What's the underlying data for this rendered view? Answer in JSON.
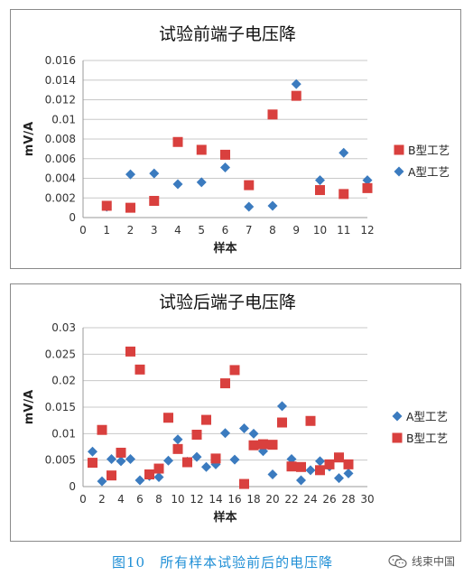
{
  "chart_data": [
    {
      "type": "scatter",
      "title": "试验前端子电压降",
      "xlabel": "样本",
      "ylabel": "mV/A",
      "xlim": [
        0,
        12
      ],
      "ylim": [
        0,
        0.016
      ],
      "xticks": [
        0,
        1,
        2,
        3,
        4,
        5,
        6,
        7,
        8,
        9,
        10,
        11,
        12
      ],
      "yticks": [
        "0",
        "0.002",
        "0.004",
        "0.006",
        "0.008",
        "0.01",
        "0.012",
        "0.014",
        "0.016"
      ],
      "grid": "horizontal",
      "legend_position": "right",
      "series": [
        {
          "name": "B型工艺",
          "marker": "square",
          "color": "#d9403e",
          "x": [
            1,
            2,
            3,
            4,
            5,
            6,
            7,
            8,
            9,
            10,
            11,
            12
          ],
          "y": [
            0.0012,
            0.001,
            0.0017,
            0.0077,
            0.0069,
            0.0064,
            0.0033,
            0.0105,
            0.0124,
            0.0028,
            0.0024,
            0.003
          ]
        },
        {
          "name": "A型工艺",
          "marker": "diamond",
          "color": "#3b7bbf",
          "x": [
            1,
            2,
            3,
            4,
            5,
            6,
            7,
            8,
            9,
            10,
            11,
            12
          ],
          "y": [
            0.0011,
            0.0044,
            0.0045,
            0.0034,
            0.0036,
            0.0051,
            0.0011,
            0.0012,
            0.0136,
            0.0038,
            0.0066,
            0.0038
          ]
        }
      ]
    },
    {
      "type": "scatter",
      "title": "试验后端子电压降",
      "xlabel": "样本",
      "ylabel": "mV/A",
      "xlim": [
        0,
        30
      ],
      "ylim": [
        0,
        0.03
      ],
      "xticks": [
        0,
        2,
        4,
        6,
        8,
        10,
        12,
        14,
        16,
        18,
        20,
        22,
        24,
        26,
        28,
        30
      ],
      "yticks": [
        "0",
        "0.005",
        "0.01",
        "0.015",
        "0.02",
        "0.025",
        "0.03"
      ],
      "grid": "horizontal",
      "legend_position": "right",
      "series": [
        {
          "name": "A型工艺",
          "marker": "diamond",
          "color": "#3b7bbf",
          "x": [
            1,
            2,
            3,
            4,
            5,
            6,
            7,
            8,
            9,
            10,
            11,
            12,
            13,
            14,
            15,
            16,
            17,
            18,
            19,
            20,
            21,
            22,
            23,
            24,
            25,
            26,
            27,
            28
          ],
          "y": [
            0.0066,
            0.001,
            0.0052,
            0.0048,
            0.0052,
            0.0012,
            0.002,
            0.0018,
            0.0049,
            0.0089,
            0.0047,
            0.0056,
            0.0037,
            0.0042,
            0.0101,
            0.0051,
            0.011,
            0.01,
            0.0067,
            0.0023,
            0.0152,
            0.0052,
            0.0012,
            0.0031,
            0.0048,
            0.0038,
            0.0016,
            0.0025
          ]
        },
        {
          "name": "B型工艺",
          "marker": "square",
          "color": "#d9403e",
          "x": [
            1,
            2,
            3,
            4,
            5,
            6,
            7,
            8,
            9,
            10,
            11,
            12,
            13,
            14,
            15,
            16,
            17,
            18,
            19,
            20,
            21,
            22,
            23,
            24,
            25,
            26,
            27,
            28
          ],
          "y": [
            0.0045,
            0.0107,
            0.0021,
            0.0064,
            0.0255,
            0.0221,
            0.0023,
            0.0034,
            0.013,
            0.0071,
            0.0046,
            0.0098,
            0.0126,
            0.0053,
            0.0195,
            0.022,
            0.0005,
            0.0078,
            0.008,
            0.0079,
            0.0121,
            0.0038,
            0.0037,
            0.0124,
            0.0031,
            0.0042,
            0.0055,
            0.0042
          ]
        }
      ]
    }
  ],
  "caption": "图10　所有样本试验前后的电压降",
  "watermark": {
    "icon": "wechat-icon",
    "text": "线束中国"
  }
}
